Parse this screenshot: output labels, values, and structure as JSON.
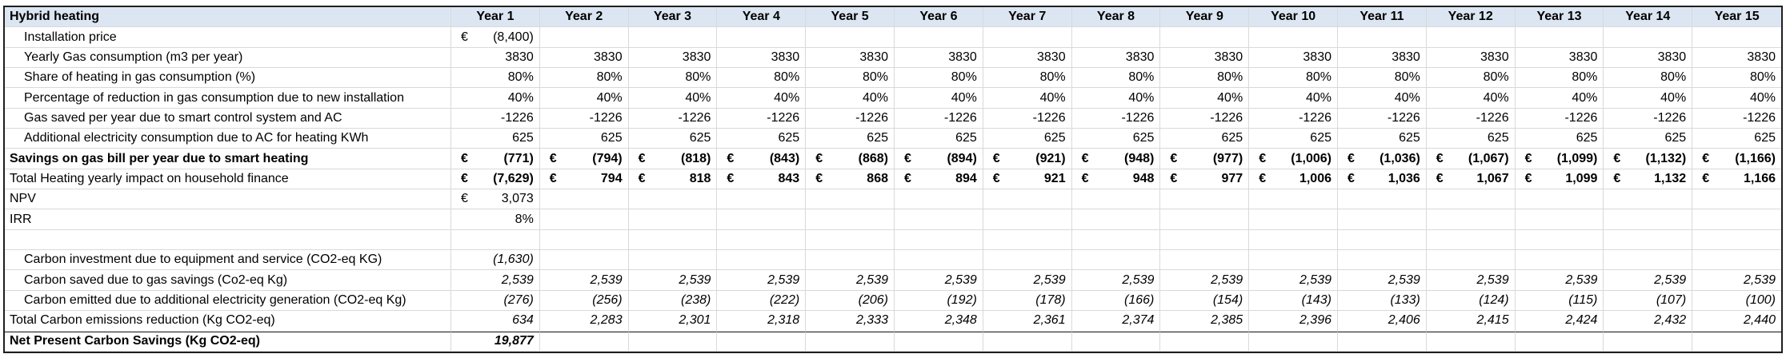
{
  "sheet": {
    "title": "Hybrid heating",
    "currency_symbol": "€",
    "columns": [
      "Year 1",
      "Year 2",
      "Year 3",
      "Year 4",
      "Year 5",
      "Year 6",
      "Year 7",
      "Year 8",
      "Year 9",
      "Year 10",
      "Year 11",
      "Year 12",
      "Year 13",
      "Year 14",
      "Year 15"
    ],
    "rows": [
      {
        "label": "Installation price",
        "indent": true,
        "euro": true,
        "values": [
          "(8,400)",
          "",
          "",
          "",
          "",
          "",
          "",
          "",
          "",
          "",
          "",
          "",
          "",
          "",
          ""
        ]
      },
      {
        "label": "Yearly Gas consumption (m3 per year)",
        "indent": true,
        "values": [
          "3830",
          "3830",
          "3830",
          "3830",
          "3830",
          "3830",
          "3830",
          "3830",
          "3830",
          "3830",
          "3830",
          "3830",
          "3830",
          "3830",
          "3830"
        ]
      },
      {
        "label": "Share of heating in gas consumption (%)",
        "indent": true,
        "values": [
          "80%",
          "80%",
          "80%",
          "80%",
          "80%",
          "80%",
          "80%",
          "80%",
          "80%",
          "80%",
          "80%",
          "80%",
          "80%",
          "80%",
          "80%"
        ]
      },
      {
        "label": "Percentage of reduction in gas consumption due to new installation",
        "indent": true,
        "values": [
          "40%",
          "40%",
          "40%",
          "40%",
          "40%",
          "40%",
          "40%",
          "40%",
          "40%",
          "40%",
          "40%",
          "40%",
          "40%",
          "40%",
          "40%"
        ]
      },
      {
        "label": "Gas saved per year due to smart control system and AC",
        "indent": true,
        "values": [
          "-1226",
          "-1226",
          "-1226",
          "-1226",
          "-1226",
          "-1226",
          "-1226",
          "-1226",
          "-1226",
          "-1226",
          "-1226",
          "-1226",
          "-1226",
          "-1226",
          "-1226"
        ]
      },
      {
        "label": "Additional electricity consumption due to AC for heating KWh",
        "indent": true,
        "values": [
          "625",
          "625",
          "625",
          "625",
          "625",
          "625",
          "625",
          "625",
          "625",
          "625",
          "625",
          "625",
          "625",
          "625",
          "625"
        ]
      },
      {
        "label": "Savings on gas bill per year due to smart heating",
        "label_bold": true,
        "values_bold": true,
        "euro": true,
        "values": [
          "(771)",
          "(794)",
          "(818)",
          "(843)",
          "(868)",
          "(894)",
          "(921)",
          "(948)",
          "(977)",
          "(1,006)",
          "(1,036)",
          "(1,067)",
          "(1,099)",
          "(1,132)",
          "(1,166)"
        ]
      },
      {
        "label": "Total Heating yearly impact on household finance",
        "values_bold": true,
        "euro": true,
        "values": [
          "(7,629)",
          "794",
          "818",
          "843",
          "868",
          "894",
          "921",
          "948",
          "977",
          "1,006",
          "1,036",
          "1,067",
          "1,099",
          "1,132",
          "1,166"
        ]
      },
      {
        "label": "NPV",
        "euro": true,
        "values": [
          "3,073",
          "",
          "",
          "",
          "",
          "",
          "",
          "",
          "",
          "",
          "",
          "",
          "",
          "",
          ""
        ]
      },
      {
        "label": "IRR",
        "values": [
          "8%",
          "",
          "",
          "",
          "",
          "",
          "",
          "",
          "",
          "",
          "",
          "",
          "",
          "",
          ""
        ]
      },
      {
        "label": "",
        "values": [
          "",
          "",
          "",
          "",
          "",
          "",
          "",
          "",
          "",
          "",
          "",
          "",
          "",
          "",
          ""
        ]
      },
      {
        "label": "Carbon investment due to equipment and service (CO2-eq KG)",
        "indent": true,
        "italic": true,
        "values": [
          "(1,630)",
          "",
          "",
          "",
          "",
          "",
          "",
          "",
          "",
          "",
          "",
          "",
          "",
          "",
          ""
        ]
      },
      {
        "label": "Carbon saved due to gas savings (Co2-eq Kg)",
        "indent": true,
        "italic": true,
        "values": [
          "2,539",
          "2,539",
          "2,539",
          "2,539",
          "2,539",
          "2,539",
          "2,539",
          "2,539",
          "2,539",
          "2,539",
          "2,539",
          "2,539",
          "2,539",
          "2,539",
          "2,539"
        ]
      },
      {
        "label": "Carbon emitted due to additional electricity generation (CO2-eq Kg)",
        "indent": true,
        "italic": true,
        "values": [
          "(276)",
          "(256)",
          "(238)",
          "(222)",
          "(206)",
          "(192)",
          "(178)",
          "(166)",
          "(154)",
          "(143)",
          "(133)",
          "(124)",
          "(115)",
          "(107)",
          "(100)"
        ]
      },
      {
        "label": "Total Carbon emissions reduction (Kg CO2-eq)",
        "italic": true,
        "values": [
          "634",
          "2,283",
          "2,301",
          "2,318",
          "2,333",
          "2,348",
          "2,361",
          "2,374",
          "2,385",
          "2,396",
          "2,406",
          "2,415",
          "2,424",
          "2,432",
          "2,440"
        ]
      },
      {
        "label": "Net Present Carbon Savings (Kg CO2-eq)",
        "label_bold": true,
        "values_bold": true,
        "italic": true,
        "top_border": true,
        "values": [
          "19,877",
          "",
          "",
          "",
          "",
          "",
          "",
          "",
          "",
          "",
          "",
          "",
          "",
          "",
          ""
        ]
      }
    ],
    "colors": {
      "header_bg": "#dce6f2",
      "gridline": "#d9d9d9",
      "outer_border": "#1f1f1f"
    }
  }
}
